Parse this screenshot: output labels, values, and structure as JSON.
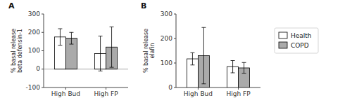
{
  "chart_data": [
    {
      "type": "bar",
      "title": "A",
      "y_label": "% basal release\nbeta defensin-1",
      "categories": [
        "High Bud",
        "High FP"
      ],
      "series": [
        {
          "name": "Health",
          "color": "#ffffff",
          "values": [
            175,
            85
          ],
          "errors": [
            45,
            95
          ]
        },
        {
          "name": "COPD",
          "color": "#aaaaaa",
          "values": [
            168,
            120
          ],
          "errors": [
            32,
            110
          ]
        }
      ],
      "ylim": [
        -100,
        300
      ],
      "yticks": [
        -100,
        0,
        100,
        200,
        300
      ]
    },
    {
      "type": "bar",
      "title": "B",
      "y_label": "% basal release\nelafin",
      "categories": [
        "High Bud",
        "High FP"
      ],
      "series": [
        {
          "name": "Health",
          "color": "#ffffff",
          "values": [
            117,
            85
          ],
          "errors": [
            25,
            25
          ]
        },
        {
          "name": "COPD",
          "color": "#aaaaaa",
          "values": [
            130,
            80
          ],
          "errors": [
            115,
            22
          ]
        }
      ],
      "ylim": [
        0,
        300
      ],
      "yticks": [
        0,
        100,
        200,
        300
      ],
      "legend": "right"
    }
  ]
}
